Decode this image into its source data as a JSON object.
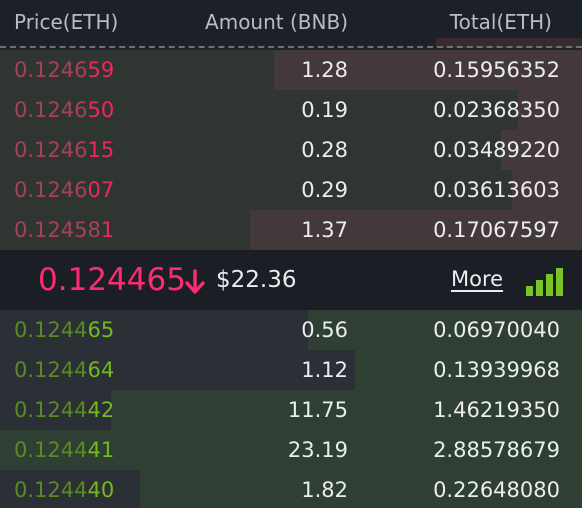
{
  "header": {
    "price_label": "Price(ETH)",
    "amount_label": "Amount (BNB)",
    "total_label": "Total(ETH)"
  },
  "asks": [
    {
      "price_dim": "0.1246",
      "price_hi": "59",
      "amount": "1.28",
      "total": "0.15956352",
      "depth_pct": 53
    },
    {
      "price_dim": "0.1246",
      "price_hi": "50",
      "amount": "0.19",
      "total": "0.02368350",
      "depth_pct": 11
    },
    {
      "price_dim": "0.1246",
      "price_hi": "15",
      "amount": "0.28",
      "total": "0.03489220",
      "depth_pct": 14
    },
    {
      "price_dim": "0.1246",
      "price_hi": "07",
      "amount": "0.29",
      "total": "0.03613603",
      "depth_pct": 12
    },
    {
      "price_dim": "0.12458",
      "price_hi": "1",
      "amount": "1.37",
      "total": "0.17067597",
      "depth_pct": 57
    }
  ],
  "mid": {
    "price": "0.124465",
    "fiat": "$22.36",
    "more_label": "More",
    "arrow_icon": "arrow-down-icon",
    "signal_icon": "signal-bars-icon"
  },
  "bids": [
    {
      "price_dim": "0.1244",
      "price_hi": "65",
      "amount": "0.56",
      "total": "0.06970040",
      "depth_pct": 47
    },
    {
      "price_dim": "0.1244",
      "price_hi": "64",
      "amount": "1.12",
      "total": "0.13939968",
      "depth_pct": 39
    },
    {
      "price_dim": "0.1244",
      "price_hi": "42",
      "amount": "11.75",
      "total": "1.46219350",
      "depth_pct": 81
    },
    {
      "price_dim": "0.1244",
      "price_hi": "41",
      "amount": "23.19",
      "total": "2.88578679",
      "depth_pct": 100
    },
    {
      "price_dim": "0.1244",
      "price_hi": "40",
      "amount": "1.82",
      "total": "0.22648080",
      "depth_pct": 76
    }
  ],
  "colors": {
    "ask_price": "#f0265e",
    "bid_price": "#74b91e",
    "mid_price": "#ff2b72",
    "signal": "#7bc427"
  }
}
